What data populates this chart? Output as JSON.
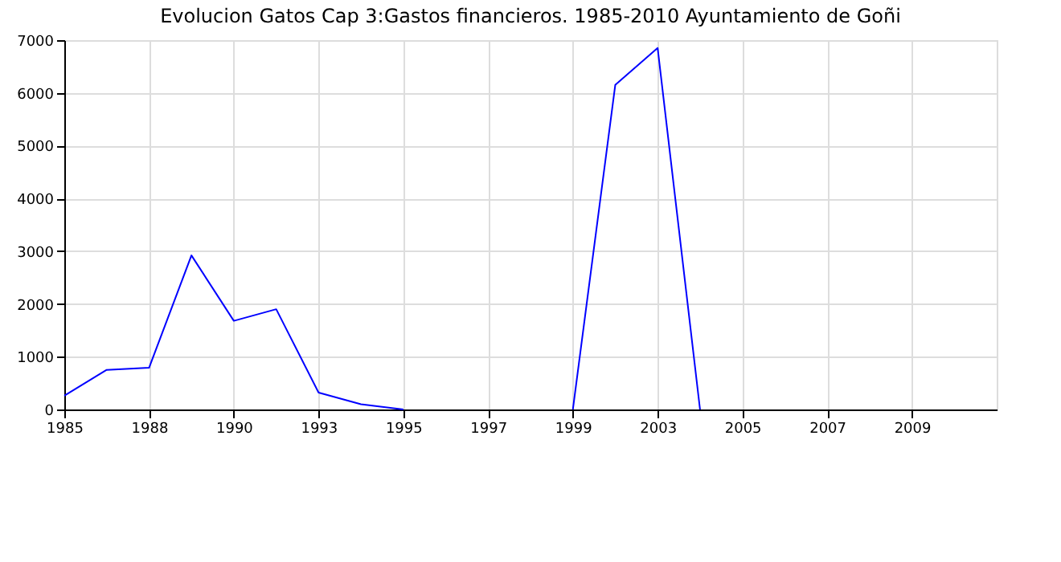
{
  "chart_data": {
    "type": "line",
    "title": "Evolucion Gatos Cap 3:Gastos financieros. 1985-2010 Ayuntamiento de Goñi",
    "categories": [
      "1985",
      null,
      "1988",
      null,
      "1990",
      null,
      "1993",
      null,
      "1995",
      null,
      "1997",
      null,
      "1999",
      null,
      "2003",
      null,
      "2005",
      null,
      "2007",
      null,
      "2009",
      null,
      null
    ],
    "series": [
      {
        "color": "#0000ff",
        "values": [
          260,
          750,
          790,
          2920,
          1680,
          1900,
          320,
          100,
          0,
          null,
          null,
          null,
          0,
          6150,
          6850,
          0,
          null,
          null,
          null,
          null,
          null,
          null,
          null
        ]
      }
    ],
    "ylim": [
      0,
      7000
    ],
    "yticks": [
      0,
      1000,
      2000,
      3000,
      4000,
      5000,
      6000,
      7000
    ],
    "grid": true,
    "marker": "none",
    "line_style": "solid"
  }
}
